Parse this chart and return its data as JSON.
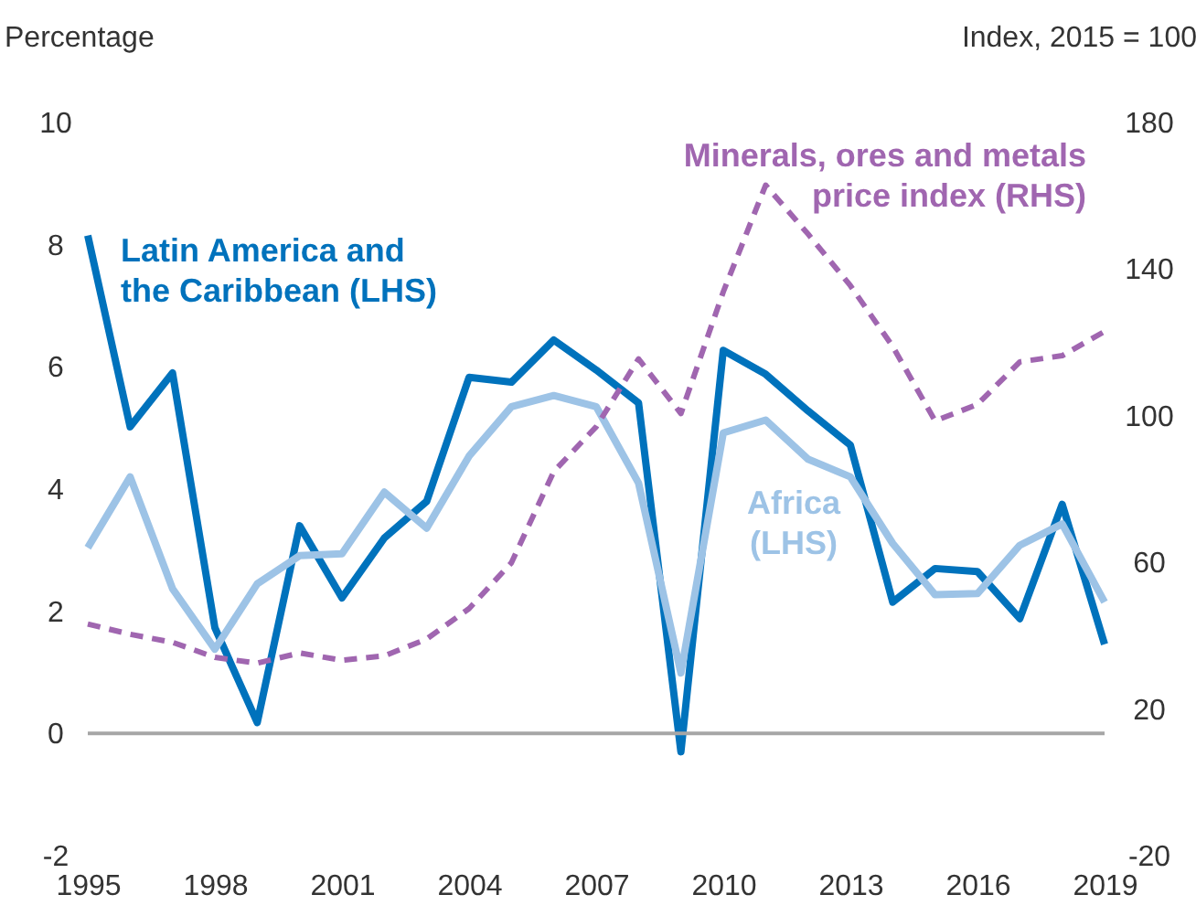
{
  "chart_data": {
    "type": "line",
    "ylabel": "Percentage",
    "y2label": "Index, 2015 = 100",
    "x": [
      1995,
      1996,
      1997,
      1998,
      1999,
      2000,
      2001,
      2002,
      2003,
      2004,
      2005,
      2006,
      2007,
      2008,
      2009,
      2010,
      2011,
      2012,
      2013,
      2014,
      2015,
      2016,
      2017,
      2018,
      2019
    ],
    "xlim": [
      1995,
      2019
    ],
    "xticks": [
      1995,
      1998,
      2001,
      2004,
      2007,
      2010,
      2013,
      2016,
      2019
    ],
    "ylim": [
      -2,
      10
    ],
    "yticks": [
      -2,
      0,
      2,
      4,
      6,
      8,
      10
    ],
    "y2lim": [
      -20,
      180
    ],
    "y2ticks": [
      -20,
      20,
      60,
      100,
      140,
      180
    ],
    "series": [
      {
        "name": "Latin America and the Caribbean (LHS)",
        "color": "#0072bc",
        "line_style": "solid",
        "values": [
          8.15,
          5.02,
          5.9,
          1.73,
          0.18,
          3.4,
          2.22,
          3.2,
          3.8,
          5.83,
          5.75,
          6.44,
          5.95,
          5.41,
          -0.3,
          6.27,
          5.88,
          5.28,
          4.72,
          2.15,
          2.7,
          2.65,
          1.88,
          3.75,
          1.46
        ]
      },
      {
        "name": "Africa (LHS)",
        "color": "#9dc3e6",
        "line_style": "solid",
        "values": [
          3.04,
          4.2,
          2.37,
          1.38,
          2.45,
          2.91,
          2.94,
          3.95,
          3.36,
          4.54,
          5.35,
          5.53,
          5.35,
          4.1,
          0.99,
          4.92,
          5.13,
          4.49,
          4.2,
          3.11,
          2.27,
          2.29,
          3.08,
          3.43,
          2.15
        ]
      },
      {
        "name": "Minerals, ores and metals price index (RHS)",
        "color": "#a066b0",
        "line_style": "dashed",
        "axis": "y2",
        "values": [
          43.2,
          40.4,
          38.2,
          34.1,
          32.5,
          35.3,
          33.3,
          34.5,
          39.1,
          47.4,
          59.9,
          84.8,
          97,
          115.5,
          100.6,
          133.8,
          162.9,
          149.6,
          135.5,
          118.9,
          98.6,
          103.1,
          114.7,
          116.4,
          123.0
        ]
      }
    ],
    "ref_lines": [
      {
        "axis": "y",
        "value": 0,
        "color": "#a6a6a6"
      }
    ],
    "grid": false
  }
}
